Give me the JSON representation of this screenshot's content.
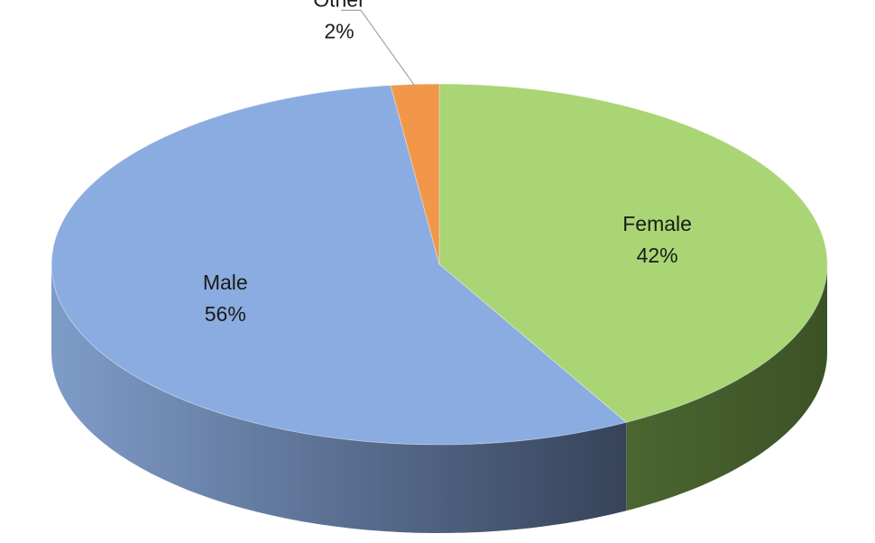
{
  "chart_data": {
    "type": "pie",
    "style": "3d",
    "slices": [
      {
        "label": "Female",
        "value": 42,
        "value_label": "42%",
        "color": "#a9d574",
        "side_color": "#4a6430"
      },
      {
        "label": "Male",
        "value": 56,
        "value_label": "56%",
        "color": "#8aace0",
        "side_color": "#5b7196"
      },
      {
        "label": "Other",
        "value": 2,
        "value_label": "2%",
        "color": "#f2974a",
        "side_color": "#9a5a28"
      }
    ],
    "label_placement": "inside (Other outside with leader line)",
    "legend": "none"
  }
}
